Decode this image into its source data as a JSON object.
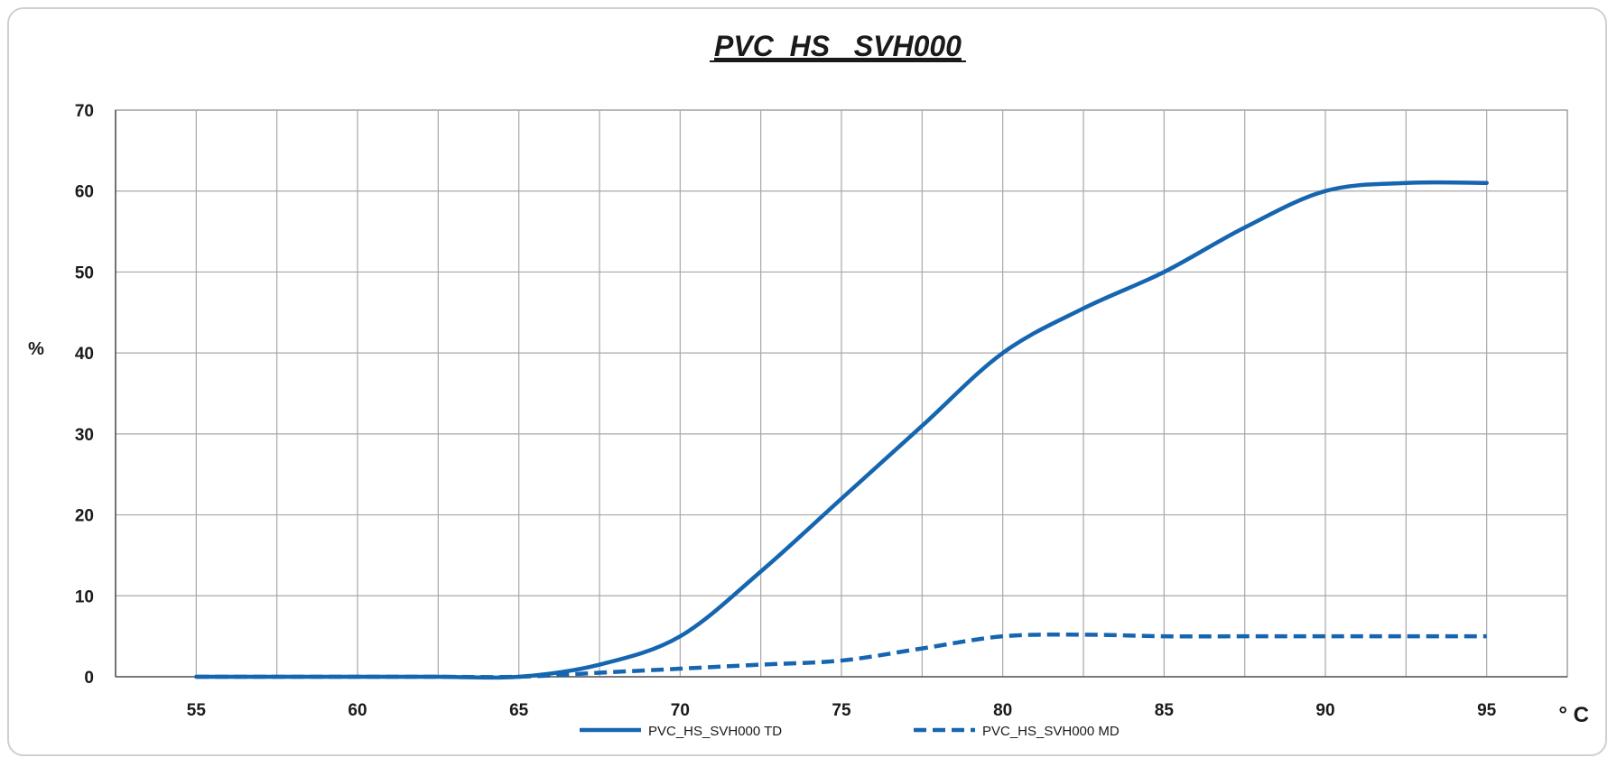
{
  "chart_data": {
    "type": "line",
    "title": "PVC_HS_ SVH000",
    "xlabel": "° C",
    "ylabel": "%",
    "xlim": [
      52.5,
      97.5
    ],
    "ylim": [
      0,
      70
    ],
    "x_ticks": [
      55,
      60,
      65,
      70,
      75,
      80,
      85,
      90,
      95
    ],
    "y_ticks": [
      0,
      10,
      20,
      30,
      40,
      50,
      60,
      70
    ],
    "grid": true,
    "legend_position": "bottom",
    "series": [
      {
        "name": "PVC_HS_SVH000 TD",
        "style": "solid",
        "color": "#1565b0",
        "x": [
          55,
          60,
          62.5,
          65,
          67.5,
          70,
          72.5,
          75,
          77.5,
          80,
          82.5,
          85,
          87.5,
          90,
          92.5,
          95
        ],
        "y": [
          0,
          0,
          0,
          0,
          1.5,
          5,
          13,
          22,
          31,
          40,
          45.5,
          50,
          55.5,
          60,
          61,
          61
        ]
      },
      {
        "name": "PVC_HS_SVH000 MD",
        "style": "dashed",
        "color": "#1565b0",
        "x": [
          55,
          60,
          62.5,
          65,
          67.5,
          70,
          72.5,
          75,
          77.5,
          80,
          82.5,
          85,
          87.5,
          90,
          92.5,
          95
        ],
        "y": [
          0,
          0,
          0,
          0,
          0.5,
          1,
          1.5,
          2,
          3.5,
          5,
          5.2,
          5,
          5,
          5,
          5,
          5
        ]
      }
    ]
  }
}
